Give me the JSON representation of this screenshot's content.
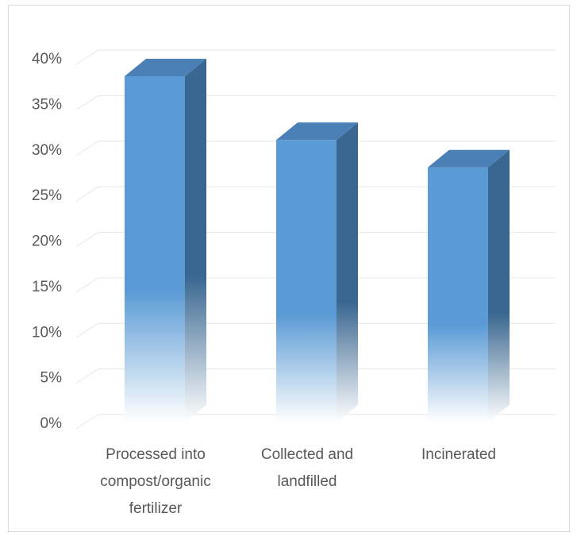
{
  "chart_data": {
    "type": "bar",
    "style": "3d-column",
    "categories": [
      [
        "Processed into",
        "compost/organic",
        "fertilizer"
      ],
      [
        "Collected and",
        "landfilled"
      ],
      [
        "Incinerated"
      ]
    ],
    "values": [
      38,
      31,
      28
    ],
    "yticks": [
      "0%",
      "5%",
      "10%",
      "15%",
      "20%",
      "25%",
      "30%",
      "35%",
      "40%"
    ],
    "ylim": [
      0,
      40
    ],
    "grid": true,
    "colors": {
      "front": "#5b9bd5",
      "side": "#3a6791",
      "top": "#4a80b5",
      "grid": "#e6e6e6"
    }
  }
}
